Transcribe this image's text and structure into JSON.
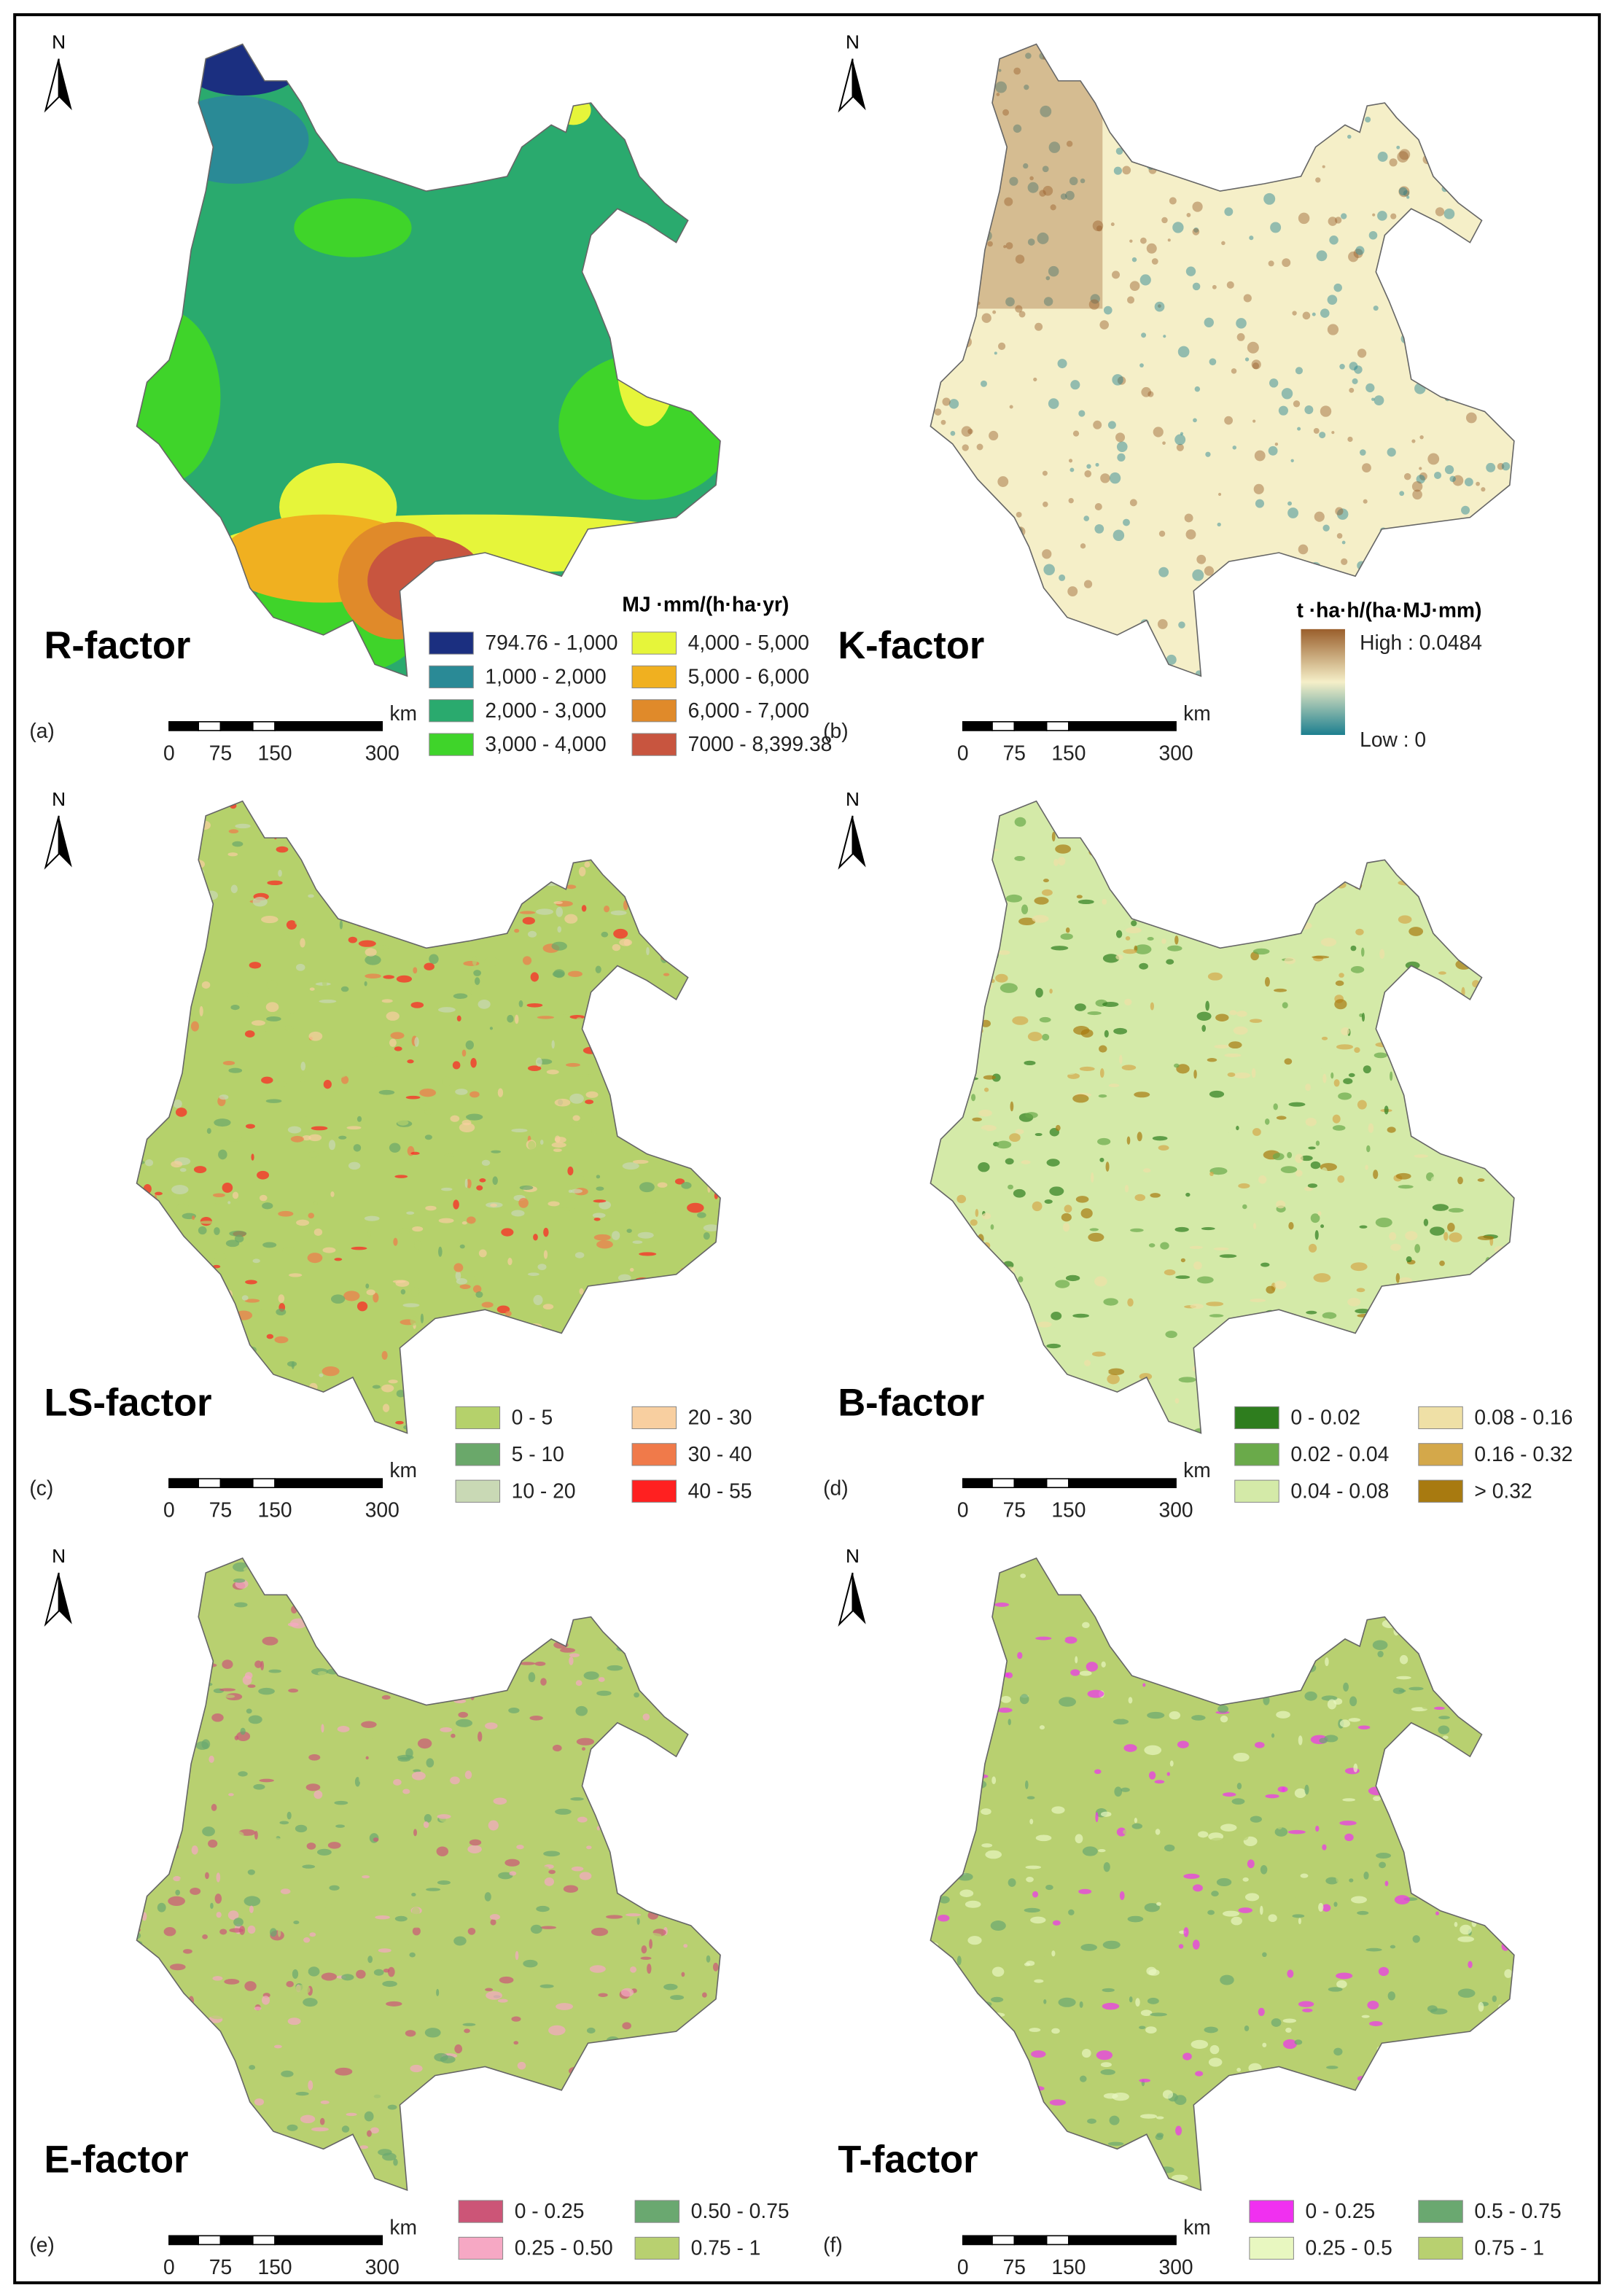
{
  "panels": [
    {
      "letter": "(a)",
      "title": "R-factor",
      "north": "N",
      "scale_bar": {
        "labels": [
          "0",
          "75",
          "150",
          "300"
        ],
        "unit": "km"
      },
      "legend": {
        "title": "MJ ·mm/(h·ha·yr)",
        "items": [
          {
            "label": "794.76 - 1,000",
            "color": "#1b2f80"
          },
          {
            "label": "1,000 - 2,000",
            "color": "#2a8a96"
          },
          {
            "label": "2,000 - 3,000",
            "color": "#2aaa6e"
          },
          {
            "label": "3,000 - 4,000",
            "color": "#3fd42a"
          },
          {
            "label": "4,000 - 5,000",
            "color": "#e6f53a"
          },
          {
            "label": "5,000 - 6,000",
            "color": "#f0b020"
          },
          {
            "label": "6,000 - 7,000",
            "color": "#e08a2a"
          },
          {
            "label": "7000 - 8,399.38",
            "color": "#c8553f"
          }
        ]
      }
    },
    {
      "letter": "(b)",
      "title": "K-factor",
      "north": "N",
      "scale_bar": {
        "labels": [
          "0",
          "75",
          "150",
          "300"
        ],
        "unit": "km"
      },
      "legend": {
        "title": "t ·ha·h/(ha·MJ·mm)",
        "high": "High : 0.0484",
        "low": "Low : 0",
        "colors": [
          "#9a5f2c",
          "#f5efc8",
          "#1c7f8f"
        ]
      }
    },
    {
      "letter": "(c)",
      "title": "LS-factor",
      "north": "N",
      "scale_bar": {
        "labels": [
          "0",
          "75",
          "150",
          "300"
        ],
        "unit": "km"
      },
      "legend": {
        "items": [
          {
            "label": "0 - 5",
            "color": "#b5d16b"
          },
          {
            "label": "5 - 10",
            "color": "#6aa86a"
          },
          {
            "label": "10 - 20",
            "color": "#c9d9b5"
          },
          {
            "label": "20 - 30",
            "color": "#f8cfa0"
          },
          {
            "label": "30 - 40",
            "color": "#f07a4a"
          },
          {
            "label": "40 - 55",
            "color": "#ff2020"
          }
        ]
      }
    },
    {
      "letter": "(d)",
      "title": "B-factor",
      "north": "N",
      "scale_bar": {
        "labels": [
          "0",
          "75",
          "150",
          "300"
        ],
        "unit": "km"
      },
      "legend": {
        "items": [
          {
            "label": "0 - 0.02",
            "color": "#2e7d1e"
          },
          {
            "label": "0.02 - 0.04",
            "color": "#6aaa4a"
          },
          {
            "label": "0.04 - 0.08",
            "color": "#d4eaa8"
          },
          {
            "label": "0.08 - 0.16",
            "color": "#efe0a6"
          },
          {
            "label": "0.16 - 0.32",
            "color": "#d4a84a"
          },
          {
            "label": "> 0.32",
            "color": "#a87a10"
          }
        ]
      }
    },
    {
      "letter": "(e)",
      "title": "E-factor",
      "north": "N",
      "scale_bar": {
        "labels": [
          "0",
          "75",
          "150",
          "300"
        ],
        "unit": "km"
      },
      "legend": {
        "items": [
          {
            "label": "0 - 0.25",
            "color": "#cc5577"
          },
          {
            "label": "0.25 - 0.50",
            "color": "#f6a8c4"
          },
          {
            "label": "0.50 - 0.75",
            "color": "#6aa870"
          },
          {
            "label": "0.75 - 1",
            "color": "#b8d070"
          }
        ]
      }
    },
    {
      "letter": "(f)",
      "title": "T-factor",
      "north": "N",
      "scale_bar": {
        "labels": [
          "0",
          "75",
          "150",
          "300"
        ],
        "unit": "km"
      },
      "legend": {
        "items": [
          {
            "label": "0 - 0.25",
            "color": "#f030f0"
          },
          {
            "label": "0.25 - 0.5",
            "color": "#e8f7c0"
          },
          {
            "label": "0.5 - 0.75",
            "color": "#6aa870"
          },
          {
            "label": "0.75 - 1",
            "color": "#b8d070"
          }
        ]
      }
    }
  ]
}
